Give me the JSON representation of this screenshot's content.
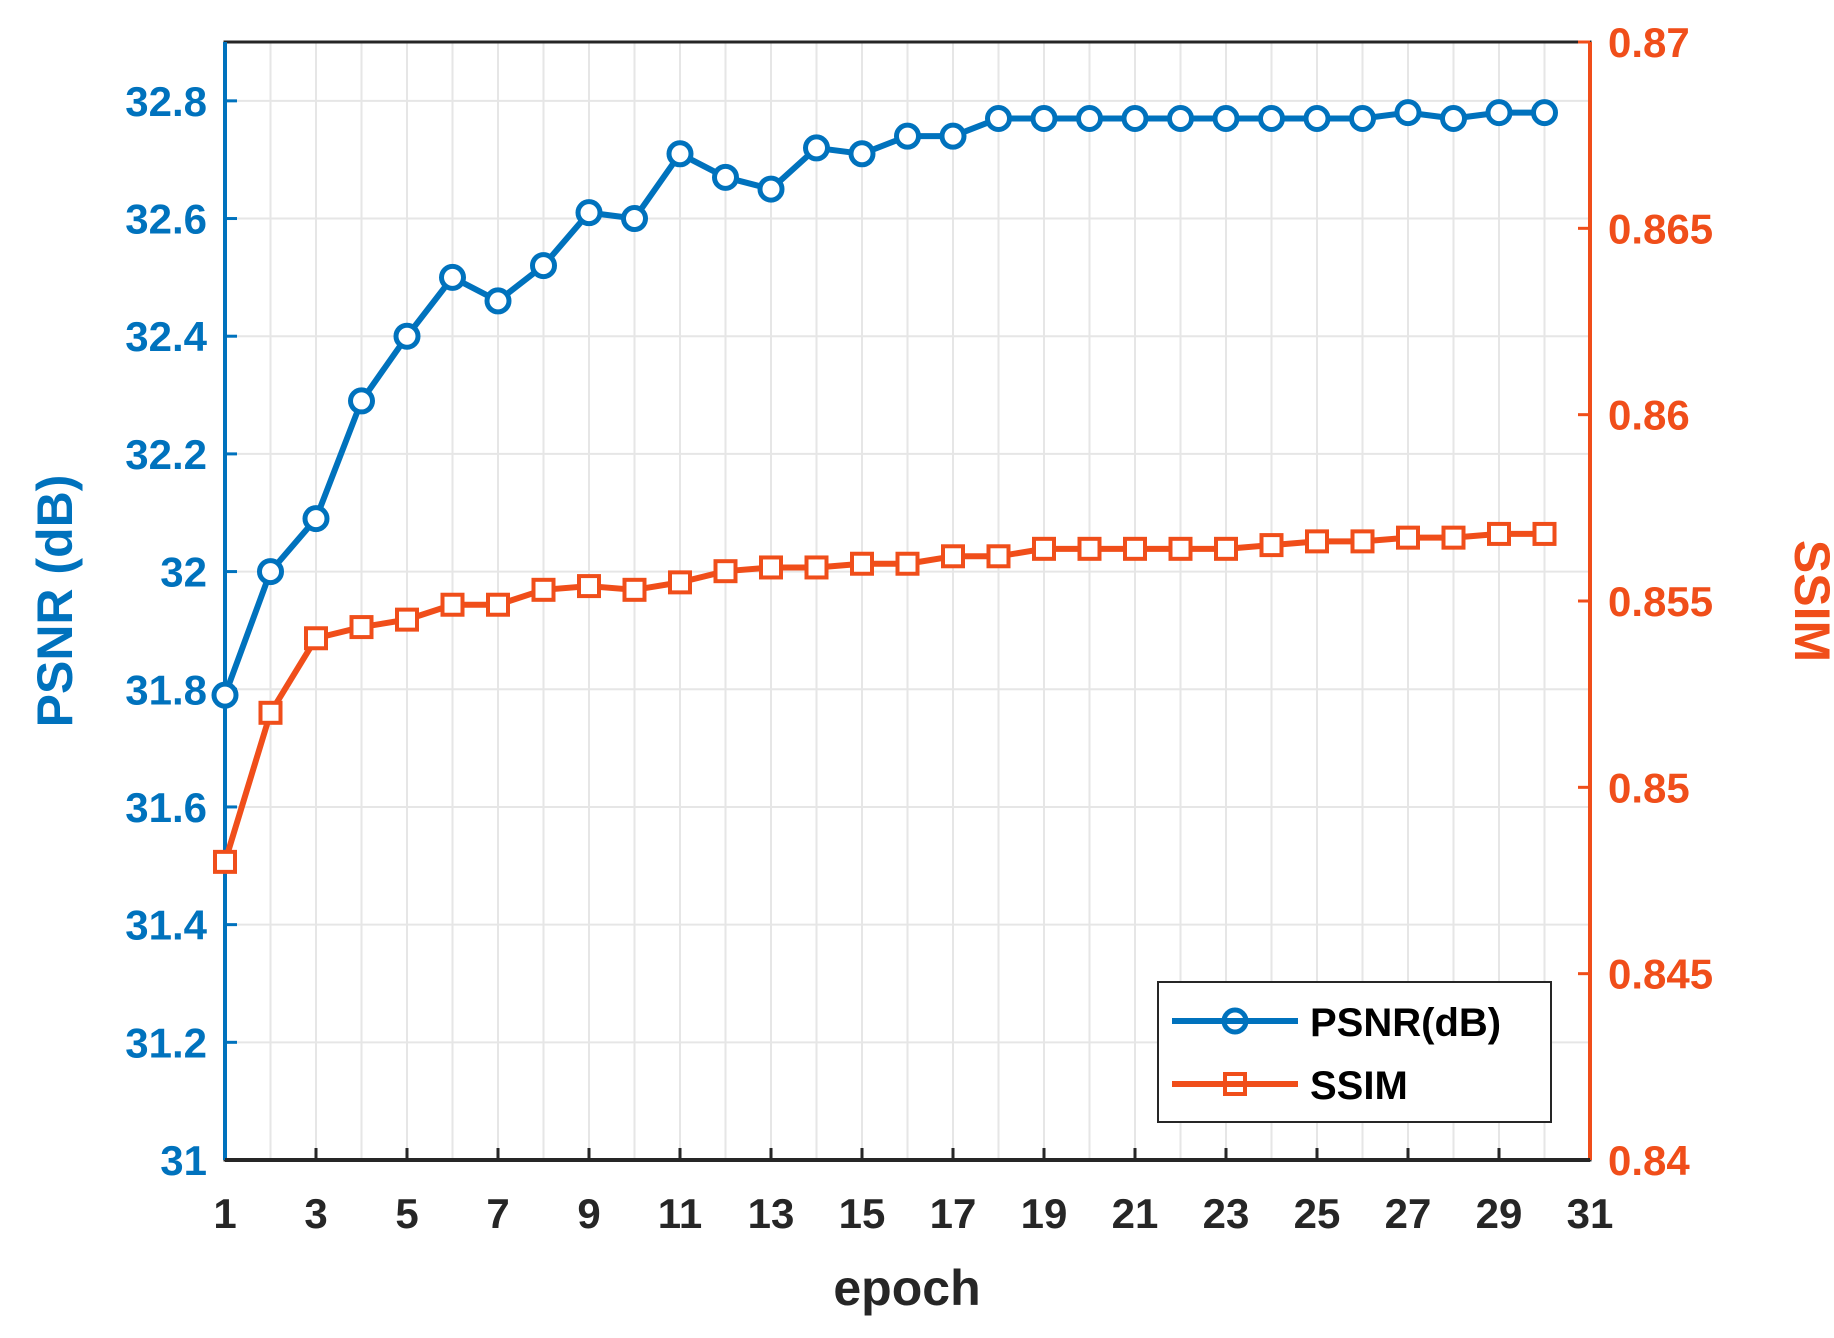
{
  "chart_data": {
    "type": "line",
    "xlabel": "epoch",
    "ylabel_left": "PSNR (dB)",
    "ylabel_right": "SSIM",
    "xlim": [
      1,
      31
    ],
    "xticks": [
      "1",
      "3",
      "5",
      "7",
      "9",
      "11",
      "13",
      "15",
      "17",
      "19",
      "21",
      "23",
      "25",
      "27",
      "29",
      "31"
    ],
    "ylim_left": [
      31,
      32.9
    ],
    "yticks_left": [
      "31",
      "31.2",
      "31.4",
      "31.6",
      "31.8",
      "32",
      "32.2",
      "32.4",
      "32.6",
      "32.8"
    ],
    "ylim_right": [
      0.84,
      0.87
    ],
    "yticks_right": [
      "0.84",
      "0.845",
      "0.85",
      "0.855",
      "0.86",
      "0.865",
      "0.87"
    ],
    "grid": true,
    "legend_position": "bottom-right",
    "x": [
      1,
      2,
      3,
      4,
      5,
      6,
      7,
      8,
      9,
      10,
      11,
      12,
      13,
      14,
      15,
      16,
      17,
      18,
      19,
      20,
      21,
      22,
      23,
      24,
      25,
      26,
      27,
      28,
      29,
      30
    ],
    "series": [
      {
        "name": "PSNR(dB)",
        "axis": "left",
        "marker": "circle",
        "color": "#0072BD",
        "values": [
          31.79,
          32.0,
          32.09,
          32.29,
          32.4,
          32.5,
          32.46,
          32.52,
          32.61,
          32.6,
          32.71,
          32.67,
          32.65,
          32.72,
          32.71,
          32.74,
          32.74,
          32.77,
          32.77,
          32.77,
          32.77,
          32.77,
          32.77,
          32.77,
          32.77,
          32.77,
          32.78,
          32.77,
          32.78,
          32.78
        ]
      },
      {
        "name": "SSIM",
        "axis": "right",
        "marker": "square",
        "color": "#F04E1A",
        "values": [
          0.848,
          0.852,
          0.854,
          0.8543,
          0.8545,
          0.8549,
          0.8549,
          0.8553,
          0.8554,
          0.8553,
          0.8555,
          0.8558,
          0.8559,
          0.8559,
          0.856,
          0.856,
          0.8562,
          0.8562,
          0.8564,
          0.8564,
          0.8564,
          0.8564,
          0.8564,
          0.8565,
          0.8566,
          0.8566,
          0.8567,
          0.8567,
          0.8568,
          0.8568
        ]
      }
    ]
  },
  "colors": {
    "left_axis": "#0072BD",
    "right_axis": "#F04E1A",
    "grid": "#e6e6e6",
    "axis": "#262626"
  }
}
